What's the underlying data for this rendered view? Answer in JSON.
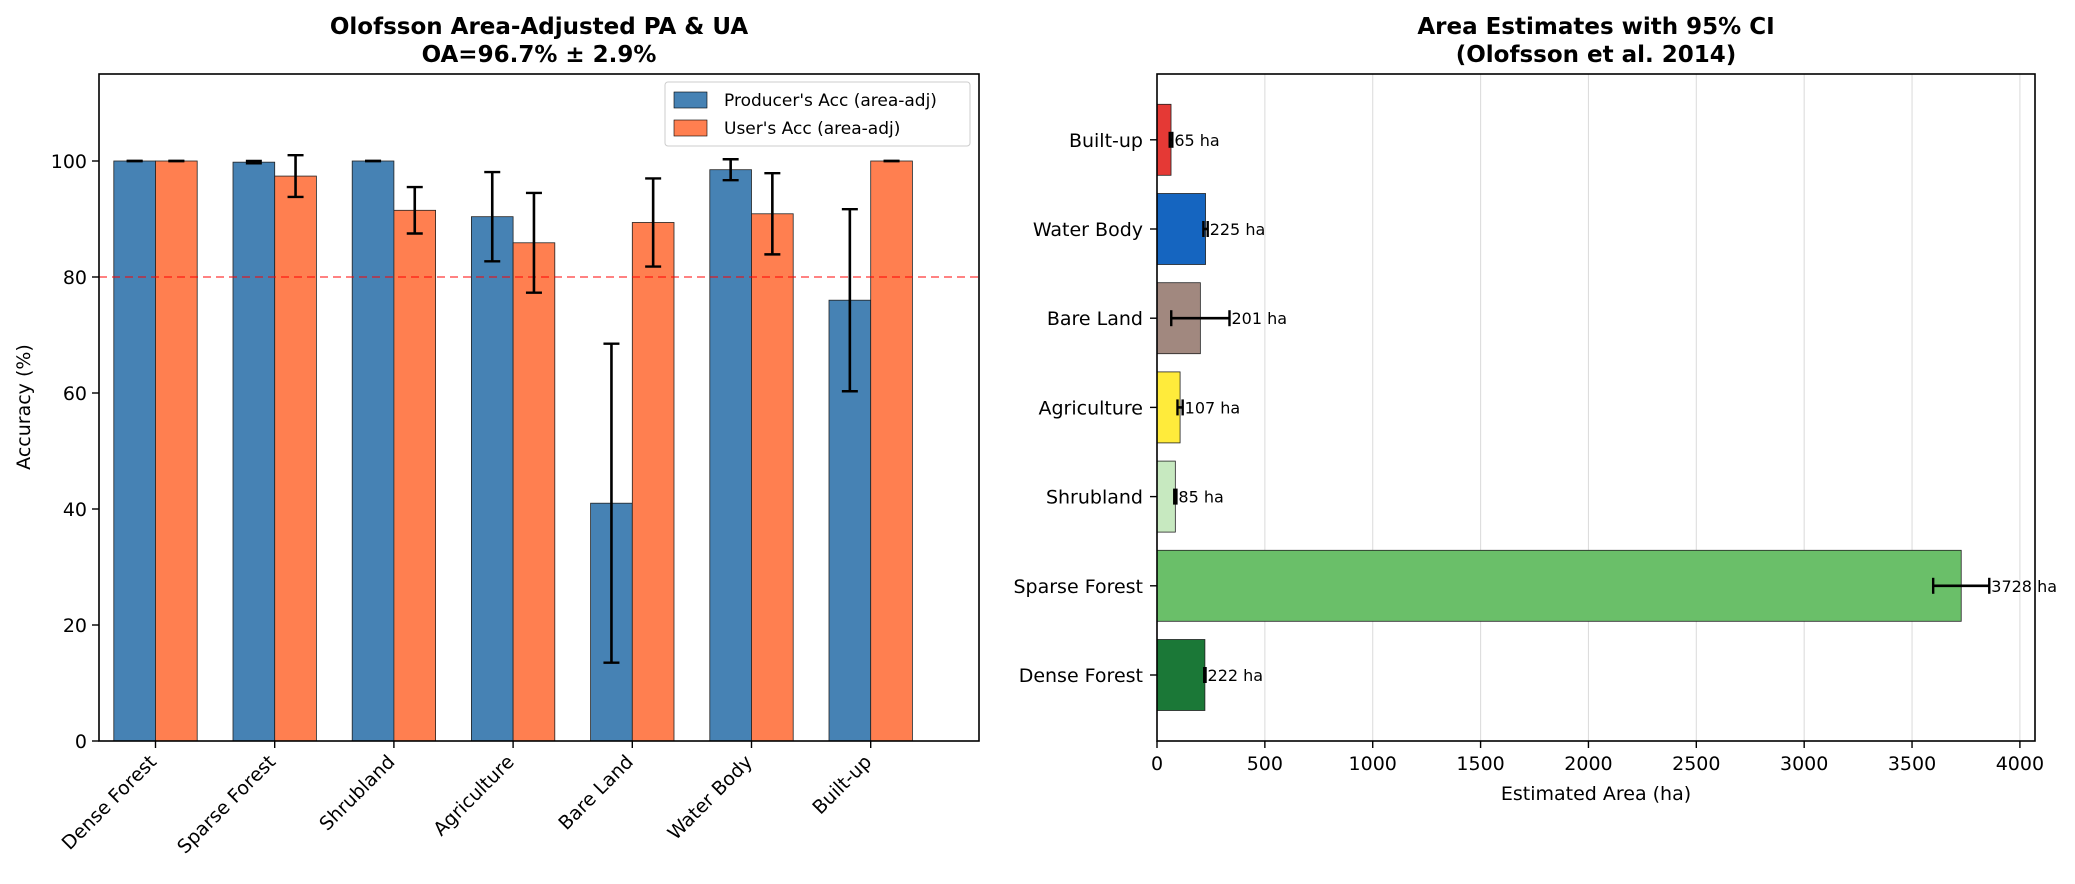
{
  "chart_data": [
    {
      "type": "bar",
      "title": "Olofsson Area-Adjusted PA & UA",
      "subtitle": "OA=96.7% ± 2.9%",
      "xlabel": "",
      "ylabel": "Accuracy (%)",
      "ylim": [
        0,
        115
      ],
      "yticks": [
        0,
        20,
        40,
        60,
        80,
        100
      ],
      "categories": [
        "Dense Forest",
        "Sparse Forest",
        "Shrubland",
        "Agriculture",
        "Bare Land",
        "Water Body",
        "Built-up"
      ],
      "series": [
        {
          "name": "Producer's Acc (area-adj)",
          "color": "#4682b4",
          "values": [
            100,
            99.8,
            100,
            90.4,
            41.0,
            98.5,
            76.0
          ],
          "errors": [
            0,
            0.2,
            0,
            7.7,
            27.5,
            1.8,
            15.7
          ]
        },
        {
          "name": "User's Acc (area-adj)",
          "color": "#ff7f50",
          "values": [
            100,
            97.4,
            91.5,
            85.9,
            89.4,
            90.9,
            100
          ],
          "errors": [
            0,
            3.6,
            4.0,
            8.6,
            7.6,
            7.0,
            0
          ]
        }
      ],
      "reference_line": {
        "value": 80,
        "color": "#ff0000"
      },
      "legend_position": "upper-right"
    },
    {
      "type": "bar",
      "orientation": "horizontal",
      "title": "Area Estimates with 95% CI",
      "subtitle": "(Olofsson et al. 2014)",
      "xlabel": "Estimated Area (ha)",
      "ylabel": "",
      "xlim": [
        0,
        4070
      ],
      "xticks": [
        0,
        500,
        1000,
        1500,
        2000,
        2500,
        3000,
        3500,
        4000
      ],
      "grid": "x",
      "categories": [
        "Dense Forest",
        "Sparse Forest",
        "Shrubland",
        "Agriculture",
        "Bare Land",
        "Water Body",
        "Built-up"
      ],
      "values": [
        222,
        3728,
        85,
        107,
        201,
        225,
        65
      ],
      "errors": [
        3,
        130,
        5,
        12,
        135,
        10,
        6
      ],
      "labels": [
        "222 ha",
        "3728 ha",
        "85 ha",
        "107 ha",
        "201 ha",
        "225 ha",
        "65 ha"
      ],
      "colors": [
        "#1b7837",
        "#6abf69",
        "#c7e9c0",
        "#ffeb3b",
        "#a1887f",
        "#1565c0",
        "#e53935"
      ]
    }
  ]
}
